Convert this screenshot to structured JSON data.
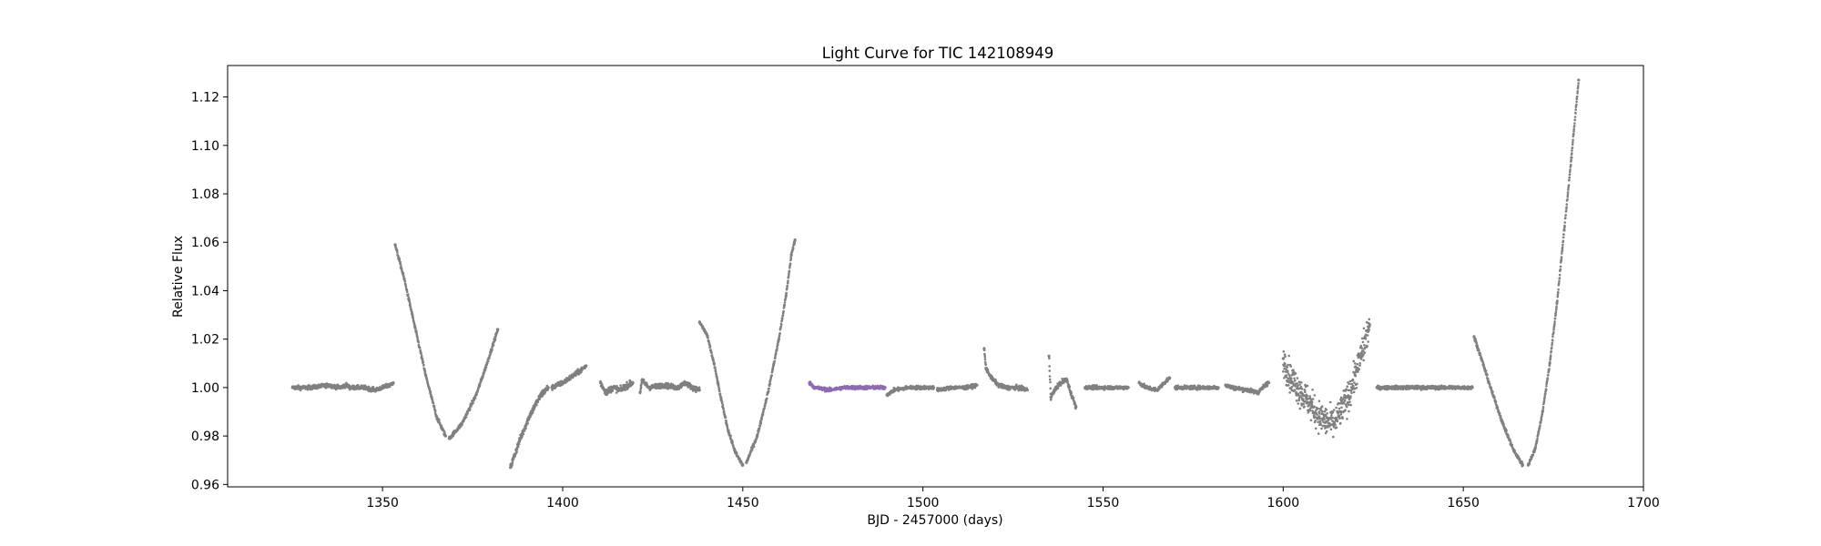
{
  "chart_data": {
    "type": "scatter",
    "title": "Light Curve for TIC 142108949",
    "xlabel": "BJD - 2457000 (days)",
    "ylabel": "Relative Flux",
    "xlim": [
      1307,
      1700
    ],
    "ylim": [
      0.959,
      1.133
    ],
    "xticks": [
      1350,
      1400,
      1450,
      1500,
      1550,
      1600,
      1650,
      1700
    ],
    "yticks": [
      0.96,
      0.98,
      1.0,
      1.02,
      1.04,
      1.06,
      1.08,
      1.1,
      1.12
    ],
    "xtick_labels": [
      "1350",
      "1400",
      "1450",
      "1500",
      "1550",
      "1600",
      "1650",
      "1700"
    ],
    "ytick_labels": [
      "0.96",
      "0.98",
      "1.00",
      "1.02",
      "1.04",
      "1.06",
      "1.08",
      "1.10",
      "1.12"
    ],
    "grid": false,
    "colors": {
      "default": "#808080",
      "highlight": "#8c6bb1"
    },
    "series": [
      {
        "color": "#808080",
        "noise": 0.0008,
        "points": [
          [
            1325.0,
            1.0
          ],
          [
            1330,
            1.0
          ],
          [
            1335,
            1.001
          ],
          [
            1338,
            1.0
          ],
          [
            1340,
            1.001
          ],
          [
            1341,
            1.0
          ],
          [
            1345,
            1.0
          ],
          [
            1348,
            0.999
          ],
          [
            1350,
            1.0
          ],
          [
            1352,
            1.001
          ],
          [
            1353,
            1.002
          ]
        ]
      },
      {
        "color": "#808080",
        "noise": 0.0008,
        "points": [
          [
            1353.5,
            1.059
          ],
          [
            1356,
            1.045
          ],
          [
            1359,
            1.025
          ],
          [
            1362,
            1.005
          ],
          [
            1365,
            0.988
          ],
          [
            1367.5,
            0.98
          ]
        ]
      },
      {
        "color": "#808080",
        "noise": 0.0008,
        "points": [
          [
            1368.5,
            0.979
          ],
          [
            1372,
            0.985
          ],
          [
            1376,
            0.997
          ],
          [
            1379,
            1.01
          ],
          [
            1382,
            1.024
          ]
        ]
      },
      {
        "color": "#808080",
        "noise": 0.0014,
        "points": [
          [
            1385.5,
            0.967
          ],
          [
            1388,
            0.978
          ],
          [
            1391,
            0.989
          ],
          [
            1394,
            0.997
          ],
          [
            1396,
            1.0
          ]
        ]
      },
      {
        "color": "#808080",
        "noise": 0.001,
        "points": [
          [
            1397,
            1.0
          ],
          [
            1400,
            1.002
          ],
          [
            1403,
            1.005
          ],
          [
            1405,
            1.007
          ],
          [
            1406.5,
            1.009
          ]
        ]
      },
      {
        "color": "#808080",
        "noise": 0.0012,
        "points": [
          [
            1410.5,
            1.002
          ],
          [
            1412,
            0.998
          ],
          [
            1414,
            1.0
          ],
          [
            1416,
            0.999
          ],
          [
            1418,
            1.001
          ],
          [
            1419.5,
            1.002
          ]
        ]
      },
      {
        "color": "#808080",
        "noise": 0.001,
        "points": [
          [
            1421.5,
            0.998
          ],
          [
            1422,
            1.003
          ],
          [
            1424,
            1.0
          ],
          [
            1428,
            1.001
          ],
          [
            1432,
            1.0
          ],
          [
            1434,
            1.002
          ],
          [
            1436,
            1.0
          ],
          [
            1438,
            0.999
          ]
        ]
      },
      {
        "color": "#808080",
        "noise": 0.0008,
        "points": [
          [
            1438,
            1.027
          ],
          [
            1440,
            1.022
          ],
          [
            1442,
            1.01
          ],
          [
            1444,
            0.995
          ],
          [
            1446,
            0.982
          ],
          [
            1448,
            0.973
          ],
          [
            1450,
            0.968
          ]
        ]
      },
      {
        "color": "#808080",
        "noise": 0.0008,
        "points": [
          [
            1451,
            0.969
          ],
          [
            1454,
            0.98
          ],
          [
            1457,
            0.998
          ],
          [
            1460,
            1.02
          ],
          [
            1462,
            1.038
          ],
          [
            1463.5,
            1.055
          ],
          [
            1464.5,
            1.061
          ]
        ]
      },
      {
        "color": "#8c6bb1",
        "noise": 0.0007,
        "points": [
          [
            1468.5,
            1.002
          ],
          [
            1470,
            1.0
          ],
          [
            1474,
            0.999
          ],
          [
            1478,
            1.0
          ],
          [
            1482,
            1.0
          ],
          [
            1486,
            1.0
          ],
          [
            1489.5,
            1.0
          ]
        ]
      },
      {
        "color": "#808080",
        "noise": 0.0007,
        "points": [
          [
            1490,
            0.997
          ],
          [
            1492,
            0.999
          ],
          [
            1496,
            1.0
          ],
          [
            1500,
            1.0
          ],
          [
            1503,
            1.0
          ]
        ]
      },
      {
        "color": "#808080",
        "noise": 0.0007,
        "points": [
          [
            1504,
            0.999
          ],
          [
            1508,
            1.0
          ],
          [
            1512,
            1.0
          ],
          [
            1515,
            1.001
          ]
        ]
      },
      {
        "color": "#808080",
        "noise": 0.0008,
        "points": [
          [
            1517,
            1.016
          ],
          [
            1517.5,
            1.008
          ],
          [
            1519,
            1.004
          ],
          [
            1521,
            1.001
          ],
          [
            1523,
            1.0
          ],
          [
            1526,
            1.0
          ],
          [
            1529,
            0.999
          ]
        ]
      },
      {
        "color": "#808080",
        "noise": 0.001,
        "points": [
          [
            1535,
            1.013
          ],
          [
            1535.5,
            0.996
          ],
          [
            1537,
            1.0
          ],
          [
            1539,
            1.003
          ],
          [
            1540,
            1.003
          ],
          [
            1541,
            0.998
          ],
          [
            1542.5,
            0.992
          ]
        ]
      },
      {
        "color": "#808080",
        "noise": 0.0007,
        "points": [
          [
            1545,
            1.0
          ],
          [
            1550,
            1.0
          ],
          [
            1555,
            1.0
          ],
          [
            1557,
            1.0
          ]
        ]
      },
      {
        "color": "#808080",
        "noise": 0.0008,
        "points": [
          [
            1560,
            1.002
          ],
          [
            1562,
            1.0
          ],
          [
            1565,
            0.999
          ],
          [
            1567,
            1.002
          ],
          [
            1568.5,
            1.004
          ]
        ]
      },
      {
        "color": "#808080",
        "noise": 0.0007,
        "points": [
          [
            1570,
            1.0
          ],
          [
            1575,
            1.0
          ],
          [
            1580,
            1.0
          ],
          [
            1582,
            1.0
          ]
        ]
      },
      {
        "color": "#808080",
        "noise": 0.0008,
        "points": [
          [
            1584,
            1.001
          ],
          [
            1586,
            1.0
          ],
          [
            1590,
            0.999
          ],
          [
            1593,
            0.998
          ],
          [
            1595,
            1.001
          ],
          [
            1596,
            1.002
          ]
        ]
      },
      {
        "color": "#808080",
        "noise": 0.006,
        "points": [
          [
            1600,
            1.012
          ],
          [
            1602,
            1.004
          ],
          [
            1605,
            0.998
          ],
          [
            1608,
            0.992
          ],
          [
            1610,
            0.988
          ],
          [
            1612,
            0.986
          ],
          [
            1614,
            0.985
          ],
          [
            1616,
            0.99
          ],
          [
            1618,
            0.996
          ],
          [
            1620,
            1.005
          ],
          [
            1622,
            1.015
          ],
          [
            1624,
            1.026
          ]
        ]
      },
      {
        "color": "#808080",
        "noise": 0.0007,
        "points": [
          [
            1626,
            1.0
          ],
          [
            1630,
            1.0
          ],
          [
            1635,
            1.0
          ],
          [
            1640,
            1.0
          ],
          [
            1645,
            1.0
          ],
          [
            1650,
            1.0
          ],
          [
            1652.5,
            1.0
          ]
        ]
      },
      {
        "color": "#808080",
        "noise": 0.0008,
        "points": [
          [
            1653,
            1.021
          ],
          [
            1655,
            1.012
          ],
          [
            1658,
            0.998
          ],
          [
            1661,
            0.985
          ],
          [
            1664,
            0.974
          ],
          [
            1666.5,
            0.968
          ]
        ]
      },
      {
        "color": "#808080",
        "noise": 0.0008,
        "points": [
          [
            1668,
            0.968
          ],
          [
            1670,
            0.975
          ],
          [
            1672,
            0.99
          ],
          [
            1674,
            1.01
          ],
          [
            1676,
            1.035
          ],
          [
            1678,
            1.065
          ],
          [
            1680,
            1.095
          ],
          [
            1682,
            1.127
          ]
        ]
      }
    ]
  }
}
